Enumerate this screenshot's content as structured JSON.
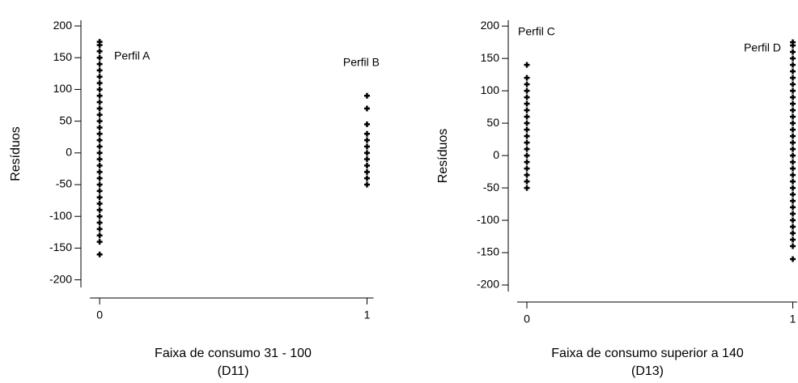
{
  "chart_data": [
    {
      "type": "scatter",
      "ylabel": "Resíduos",
      "xlabel": [
        "Faixa de consumo 31 - 100",
        "(D11)"
      ],
      "annotations": [
        "Perfil A",
        "Perfil B"
      ],
      "xlim": [
        -0.07,
        1.05
      ],
      "xticks": [
        0,
        1
      ],
      "ylim": [
        -212,
        209
      ],
      "yticks": [
        -200,
        -150,
        -100,
        -50,
        0,
        50,
        100,
        150,
        200
      ],
      "color": "#000000",
      "x": [
        0,
        0,
        0,
        0,
        0,
        0,
        0,
        0,
        0,
        0,
        0,
        0,
        0,
        0,
        0,
        0,
        0,
        0,
        0,
        0,
        0,
        0,
        0,
        0,
        0,
        0,
        0,
        0,
        0,
        0,
        0,
        0,
        0,
        0,
        1,
        1,
        1,
        1,
        1,
        1,
        1,
        1,
        1,
        1,
        1,
        1
      ],
      "values": [
        -160,
        -140,
        -130,
        -120,
        -110,
        -100,
        -90,
        -80,
        -70,
        -60,
        -50,
        -40,
        -30,
        -20,
        -10,
        0,
        10,
        20,
        30,
        40,
        50,
        60,
        70,
        80,
        90,
        100,
        110,
        120,
        130,
        140,
        150,
        160,
        170,
        175,
        -50,
        -40,
        -30,
        -20,
        -10,
        0,
        10,
        20,
        30,
        45,
        70,
        90
      ]
    },
    {
      "type": "scatter",
      "ylabel": "Resíduos",
      "xlabel": [
        "Faixa de consumo superior a 140",
        "(D13)"
      ],
      "annotations": [
        "Perfil C",
        "Perfil D"
      ],
      "xlim": [
        -0.07,
        1.05
      ],
      "xticks": [
        0,
        1
      ],
      "ylim": [
        -210,
        209
      ],
      "yticks": [
        -200,
        -150,
        -100,
        -50,
        0,
        50,
        100,
        150,
        200
      ],
      "color": "#000000",
      "x": [
        0,
        0,
        0,
        0,
        0,
        0,
        0,
        0,
        0,
        0,
        0,
        0,
        0,
        0,
        0,
        0,
        0,
        0,
        0,
        1,
        1,
        1,
        1,
        1,
        1,
        1,
        1,
        1,
        1,
        1,
        1,
        1,
        1,
        1,
        1,
        1,
        1,
        1,
        1,
        1,
        1,
        1,
        1,
        1,
        1,
        1,
        1,
        1,
        1,
        1,
        1,
        1,
        1
      ],
      "values": [
        -50,
        -40,
        -30,
        -20,
        -10,
        0,
        10,
        20,
        30,
        40,
        50,
        60,
        70,
        80,
        90,
        100,
        110,
        120,
        140,
        -160,
        -140,
        -130,
        -120,
        -110,
        -100,
        -90,
        -80,
        -70,
        -60,
        -50,
        -40,
        -30,
        -20,
        -10,
        0,
        10,
        20,
        30,
        40,
        50,
        60,
        70,
        80,
        90,
        100,
        110,
        120,
        130,
        140,
        150,
        160,
        170,
        175
      ]
    }
  ]
}
